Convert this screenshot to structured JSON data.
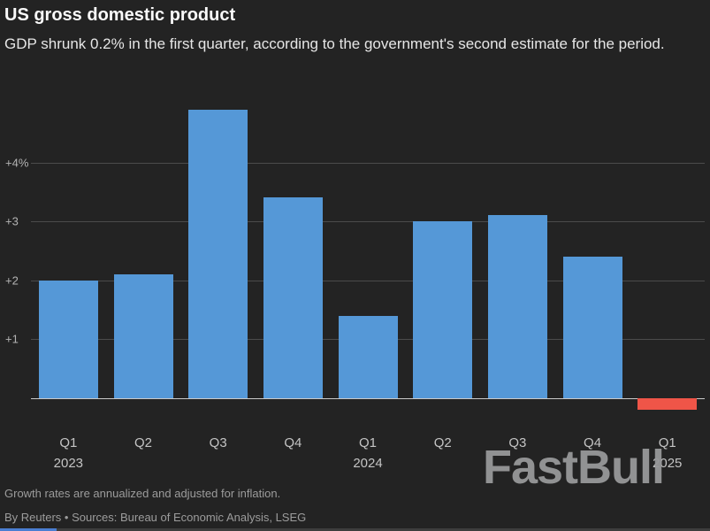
{
  "header": {
    "title": "US gross domestic product",
    "subtitle": "GDP shrunk 0.2% in the first quarter, according to the government's second estimate for the period."
  },
  "chart_data": {
    "type": "bar",
    "title": "US gross domestic product",
    "categories": [
      "Q1 2023",
      "Q2 2023",
      "Q3 2023",
      "Q4 2023",
      "Q1 2024",
      "Q2 2024",
      "Q3 2024",
      "Q4 2024",
      "Q1 2025"
    ],
    "values": [
      2.0,
      2.1,
      4.9,
      3.4,
      1.4,
      3.0,
      3.1,
      2.4,
      -0.2
    ],
    "x_tick_labels": [
      {
        "quarter": "Q1",
        "year": "2023"
      },
      {
        "quarter": "Q2",
        "year": ""
      },
      {
        "quarter": "Q3",
        "year": ""
      },
      {
        "quarter": "Q4",
        "year": ""
      },
      {
        "quarter": "Q1",
        "year": "2024"
      },
      {
        "quarter": "Q2",
        "year": ""
      },
      {
        "quarter": "Q3",
        "year": ""
      },
      {
        "quarter": "Q4",
        "year": ""
      },
      {
        "quarter": "Q1",
        "year": "2025"
      }
    ],
    "y_ticks": [
      {
        "value": 1,
        "label": "+1"
      },
      {
        "value": 2,
        "label": "+2"
      },
      {
        "value": 3,
        "label": "+3"
      },
      {
        "value": 4,
        "label": "+4%"
      }
    ],
    "ylim": [
      -0.5,
      5.3
    ],
    "grid": true,
    "legend": false,
    "bar_color": "#5598d7",
    "negative_bar_color": "#ef5548"
  },
  "footer": {
    "note": "Growth rates are annualized and adjusted for inflation.",
    "attribution": "By Reuters • Sources: Bureau of Economic Analysis, LSEG"
  },
  "watermark": {
    "text": "FastBull"
  },
  "progress_bar": {
    "fill_ratio": 0.08
  }
}
